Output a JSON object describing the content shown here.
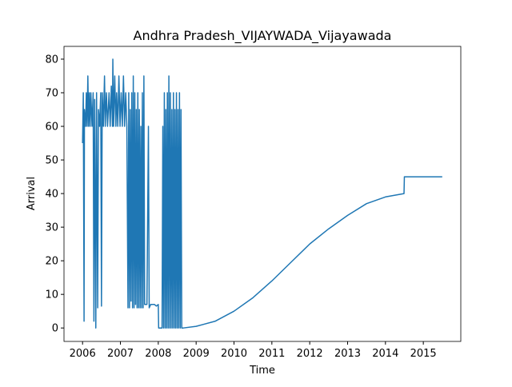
{
  "chart_data": {
    "type": "line",
    "title": "Andhra Pradesh_VIJAYWADA_Vijayawada",
    "x_label": "Time",
    "y_label": "Arrival",
    "x": [
      2006.0,
      2006.02,
      2006.04,
      2006.05,
      2006.08,
      2006.1,
      2006.12,
      2006.14,
      2006.16,
      2006.18,
      2006.2,
      2006.22,
      2006.25,
      2006.28,
      2006.3,
      2006.32,
      2006.35,
      2006.37,
      2006.4,
      2006.42,
      2006.45,
      2006.48,
      2006.5,
      2006.52,
      2006.55,
      2006.58,
      2006.6,
      2006.63,
      2006.66,
      2006.7,
      2006.73,
      2006.76,
      2006.79,
      2006.8,
      2006.82,
      2006.85,
      2006.88,
      2006.9,
      2006.93,
      2006.96,
      2006.99,
      2007.02,
      2007.05,
      2007.08,
      2007.11,
      2007.14,
      2007.17,
      2007.2,
      2007.22,
      2007.24,
      2007.26,
      2007.28,
      2007.3,
      2007.32,
      2007.34,
      2007.36,
      2007.38,
      2007.4,
      2007.42,
      2007.44,
      2007.46,
      2007.48,
      2007.5,
      2007.52,
      2007.54,
      2007.56,
      2007.58,
      2007.6,
      2007.62,
      2007.64,
      2007.7,
      2007.74,
      2007.76,
      2007.8,
      2007.9,
      2007.95,
      2008.0,
      2008.01,
      2008.1,
      2008.12,
      2008.14,
      2008.16,
      2008.18,
      2008.2,
      2008.22,
      2008.24,
      2008.26,
      2008.28,
      2008.3,
      2008.32,
      2008.34,
      2008.36,
      2008.38,
      2008.4,
      2008.42,
      2008.44,
      2008.46,
      2008.48,
      2008.5,
      2008.52,
      2008.54,
      2008.56,
      2008.58,
      2008.6,
      2008.62,
      2008.66,
      2009.0,
      2009.5,
      2010.0,
      2010.5,
      2011.0,
      2011.5,
      2012.0,
      2012.5,
      2013.0,
      2013.5,
      2014.0,
      2014.49,
      2014.5,
      2015.5
    ],
    "series": [
      {
        "color": "#1f77b4",
        "values": [
          55,
          70,
          2,
          65,
          60,
          70,
          60,
          75,
          60,
          70,
          60,
          70,
          60,
          70,
          2,
          68,
          0,
          70,
          6,
          65,
          60,
          70,
          6.5,
          70,
          60,
          75,
          60,
          70,
          60,
          70,
          60,
          72,
          60,
          80,
          60,
          75,
          60,
          70,
          60,
          75,
          60,
          70,
          60,
          75,
          60,
          70,
          60,
          6,
          70,
          6,
          65,
          8,
          70,
          6,
          75,
          6,
          70,
          7,
          65,
          6,
          70,
          6,
          65,
          6,
          60,
          6,
          70,
          6,
          75,
          7,
          7,
          60,
          6,
          7,
          7,
          6.5,
          7,
          0,
          0,
          60,
          0,
          70,
          0,
          65,
          0,
          70,
          0,
          75,
          0,
          70,
          0,
          65,
          0,
          70,
          0,
          65,
          0,
          70,
          0,
          65,
          0,
          70,
          0,
          65,
          0,
          0,
          0.5,
          2,
          5,
          9,
          14,
          19.5,
          25,
          29.5,
          33.5,
          37,
          39,
          40,
          45,
          45
        ]
      }
    ],
    "xlim": [
      2005.51,
      2015.99
    ],
    "xticks": [
      2006,
      2007,
      2008,
      2009,
      2010,
      2011,
      2012,
      2013,
      2014,
      2015
    ],
    "ylim": [
      -4,
      83.8
    ],
    "yticks": [
      0,
      10,
      20,
      30,
      40,
      50,
      60,
      70,
      80
    ]
  }
}
